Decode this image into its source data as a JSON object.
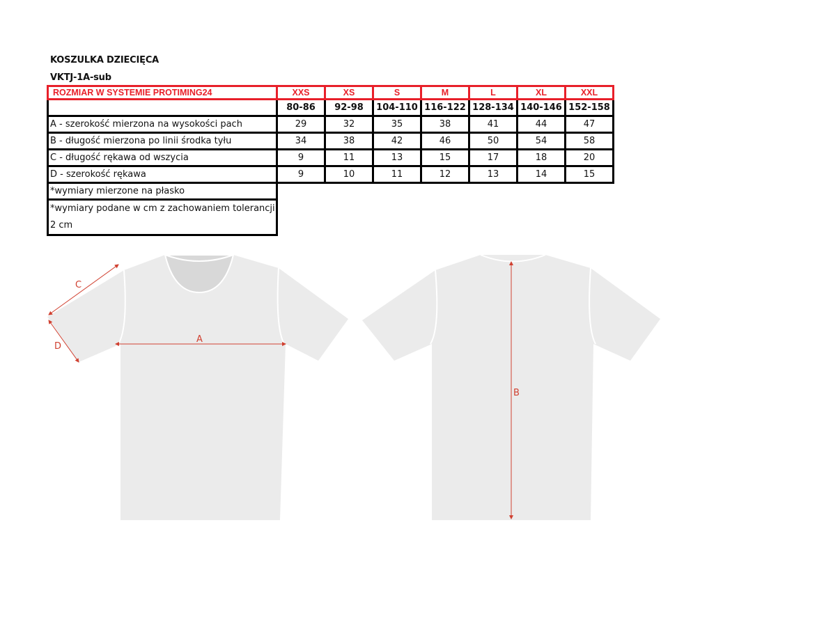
{
  "title": "KOSZULKA DZIECIĘCA",
  "code": "VKTJ-1A-sub",
  "table": {
    "header_label": "ROZMIAR W SYSTEMIE PROTIMING24",
    "sizes": [
      "XXS",
      "XS",
      "S",
      "M",
      "L",
      "XL",
      "XXL"
    ],
    "heights": [
      "80-86",
      "92-98",
      "104-110",
      "116-122",
      "128-134",
      "140-146",
      "152-158"
    ],
    "rows": [
      {
        "label": "A - szerokość mierzona na wysokości pach",
        "values": [
          "29",
          "32",
          "35",
          "38",
          "41",
          "44",
          "47"
        ]
      },
      {
        "label": "B - długość mierzona po linii środka tyłu",
        "values": [
          "34",
          "38",
          "42",
          "46",
          "50",
          "54",
          "58"
        ]
      },
      {
        "label": "C - długość rękawa od wszycia",
        "values": [
          "9",
          "11",
          "13",
          "15",
          "17",
          "18",
          "20"
        ]
      },
      {
        "label": "D - szerokość rękawa",
        "values": [
          "9",
          "10",
          "11",
          "12",
          "13",
          "14",
          "15"
        ]
      }
    ],
    "notes": [
      "*wymiary mierzone na płasko",
      "*wymiary podane w cm z zachowaniem tolerancji 2 cm"
    ]
  },
  "diagram": {
    "labels": {
      "a": "A",
      "b": "B",
      "c": "C",
      "d": "D"
    },
    "colors": {
      "accent": "#e8202a",
      "shirt": "#ebebeb",
      "arrow": "#d04030"
    }
  }
}
